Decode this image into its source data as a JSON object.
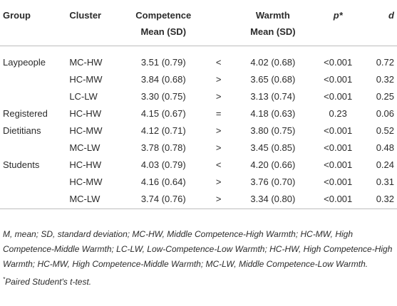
{
  "headers": {
    "group": "Group",
    "cluster": "Cluster",
    "competence_l1": "Competence",
    "competence_l2": "Mean (SD)",
    "warmth_l1": "Warmth",
    "warmth_l2": "Mean (SD)",
    "p": "p*",
    "d": "d"
  },
  "rows": [
    {
      "group": "Laypeople",
      "cluster": "MC-HW",
      "competence": "3.51 (0.79)",
      "sign": "<",
      "warmth": "4.02 (0.68)",
      "p": "<0.001",
      "d": "0.72"
    },
    {
      "group": "",
      "cluster": "HC-MW",
      "competence": "3.84 (0.68)",
      "sign": ">",
      "warmth": "3.65 (0.68)",
      "p": "<0.001",
      "d": "0.32"
    },
    {
      "group": "",
      "cluster": "LC-LW",
      "competence": "3.30 (0.75)",
      "sign": ">",
      "warmth": "3.13 (0.74)",
      "p": "<0.001",
      "d": "0.25"
    },
    {
      "group": "Registered",
      "cluster": "HC-HW",
      "competence": "4.15 (0.67)",
      "sign": "=",
      "warmth": "4.18 (0.63)",
      "p": "0.23",
      "d": "0.06"
    },
    {
      "group": "Dietitians",
      "cluster": "HC-MW",
      "competence": "4.12 (0.71)",
      "sign": ">",
      "warmth": "3.80 (0.75)",
      "p": "<0.001",
      "d": "0.52"
    },
    {
      "group": "",
      "cluster": "MC-LW",
      "competence": "3.78 (0.78)",
      "sign": ">",
      "warmth": "3.45 (0.85)",
      "p": "<0.001",
      "d": "0.48"
    },
    {
      "group": "Students",
      "cluster": "HC-HW",
      "competence": "4.03 (0.79)",
      "sign": "<",
      "warmth": "4.20 (0.66)",
      "p": "<0.001",
      "d": "0.24"
    },
    {
      "group": "",
      "cluster": "HC-MW",
      "competence": "4.16 (0.64)",
      "sign": ">",
      "warmth": "3.76 (0.70)",
      "p": "<0.001",
      "d": "0.31"
    },
    {
      "group": "",
      "cluster": "MC-LW",
      "competence": "3.74 (0.76)",
      "sign": ">",
      "warmth": "3.34 (0.80)",
      "p": "<0.001",
      "d": "0.32"
    }
  ],
  "footnote": "M, mean; SD, standard deviation; MC-HW, Middle Competence-High Warmth; HC-MW, High Competence-Middle Warmth; LC-LW, Low-Competence-Low Warmth; HC-HW, High Competence-High Warmth; HC-MW, High Competence-Middle Warmth; MC-LW, Middle Competence-Low Warmth.",
  "test_note_marker": "*",
  "test_note": "Paired Student's t-test."
}
